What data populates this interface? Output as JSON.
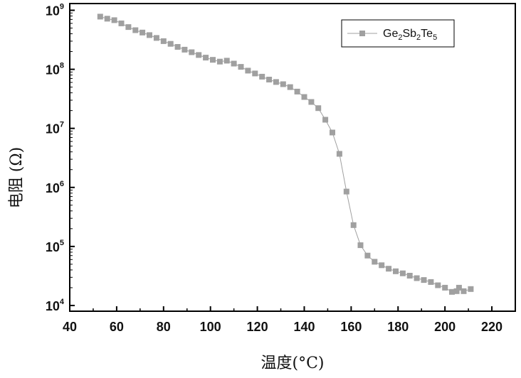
{
  "chart_data": {
    "type": "line",
    "title": "",
    "xlabel": "温度(°C)",
    "ylabel": "电阻 (Ω)",
    "xlim": [
      40,
      230
    ],
    "ylim": [
      8000,
      1300000000
    ],
    "yscale": "log",
    "grid": false,
    "legend_position": "top-right",
    "xticks": [
      40,
      60,
      80,
      100,
      120,
      140,
      160,
      180,
      200,
      220
    ],
    "yticks": [
      {
        "value": 10000,
        "base": "10",
        "exp": "4"
      },
      {
        "value": 100000,
        "base": "10",
        "exp": "5"
      },
      {
        "value": 1000000,
        "base": "10",
        "exp": "6"
      },
      {
        "value": 10000000,
        "base": "10",
        "exp": "7"
      },
      {
        "value": 100000000,
        "base": "10",
        "exp": "8"
      },
      {
        "value": 1000000000,
        "base": "10",
        "exp": "9"
      }
    ],
    "legend": {
      "name_parts": [
        "Ge",
        "2",
        "Sb",
        "2",
        "Te",
        "5"
      ]
    },
    "colors": {
      "series": "#a0a0a0",
      "axis": "#000000"
    },
    "series": [
      {
        "x": [
          53,
          56,
          59,
          62,
          65,
          68,
          71,
          74,
          77,
          80,
          83,
          86,
          89,
          92,
          95,
          98,
          101,
          104,
          107,
          110,
          113,
          116,
          119,
          122,
          125,
          128,
          131,
          134,
          137,
          140,
          143,
          146,
          149,
          152,
          155,
          158,
          161,
          164,
          167,
          170,
          173,
          176,
          179,
          182,
          185,
          188,
          191,
          194,
          197,
          200,
          203,
          205,
          206,
          208,
          211
        ],
        "y": [
          780000000,
          720000000,
          680000000,
          600000000,
          520000000,
          460000000,
          420000000,
          380000000,
          340000000,
          300000000,
          270000000,
          240000000,
          215000000,
          195000000,
          175000000,
          158000000,
          145000000,
          135000000,
          140000000,
          125000000,
          110000000,
          95000000,
          85000000,
          75000000,
          67000000,
          61000000,
          56000000,
          50000000,
          42000000,
          34000000,
          28000000,
          22000000,
          14000000,
          8500000,
          3700000,
          850000,
          230000,
          105000,
          70000,
          55000,
          48000,
          42000,
          38000,
          35000,
          32000,
          29000,
          27000,
          25000,
          22000,
          20000,
          17000,
          17500,
          20000,
          17500,
          19000
        ]
      }
    ]
  }
}
